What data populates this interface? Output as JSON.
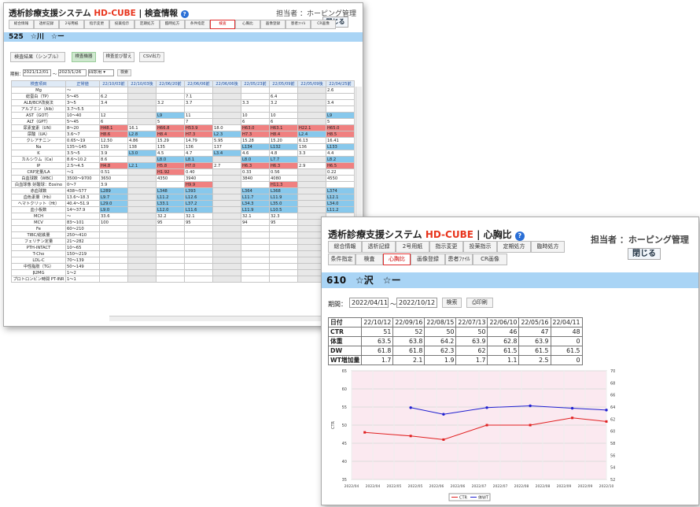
{
  "w1": {
    "title_a": "透析診療支援システム ",
    "title_b": "HD-CUBE",
    "title_c": " | 検査情報",
    "help": "?",
    "resp": "担当者 ：ホーピング管理",
    "close": "閉じる",
    "tabs": [
      "総合情報",
      "透析記録",
      "2号用紙",
      "指示変更",
      "投薬指示",
      "定期処方",
      "臨時処方",
      "条件指定",
      "検査",
      "心胸比",
      "画像登録",
      "患者ﾌｧｲﾙ",
      "CR画像"
    ],
    "active_tab": "検査",
    "patient": "525　☆川　☆ー",
    "btn_simple": "検査結果（シンプル）",
    "btn_list": "検査機器",
    "btn_sort": "検査並び替え",
    "btn_csv": "CSV出力",
    "period_label": "期間：",
    "from": "2021/12/01",
    "to": "2023/1/26",
    "select": "四診用",
    "search": "検索",
    "head_item": "検査項目",
    "head_range": "正常値",
    "dates": [
      "22/10/03前",
      "22/10/03後",
      "22/06/20前",
      "22/06/06前",
      "22/06/06後",
      "22/05/23前",
      "22/05/09前",
      "22/05/09後",
      "22/04/25前"
    ],
    "rows": [
      {
        "n": "Mg",
        "r": "〜",
        "v": [
          "",
          "",
          "",
          "",
          "",
          "",
          "",
          "",
          "2.6"
        ]
      },
      {
        "n": "総蛋白（TP）",
        "r": "5〜45",
        "v": [
          "6.2",
          "",
          "",
          "7.1",
          "",
          "",
          "6.4",
          "",
          ""
        ]
      },
      {
        "n": "ALB/BCP改良法",
        "r": "3〜5",
        "v": [
          "3.4",
          "",
          "3.2",
          "3.7",
          "",
          "3.3",
          "3.2",
          "",
          "3.4"
        ]
      },
      {
        "n": "アルブミン（Alb）",
        "r": "3.7〜5.5",
        "v": [
          "",
          "",
          "",
          "",
          "",
          "",
          "",
          "",
          ""
        ]
      },
      {
        "n": "AST（GOT）",
        "r": "10〜40",
        "v": [
          "12",
          "",
          "L9",
          "11",
          "",
          "10",
          "10",
          "",
          "L9"
        ]
      },
      {
        "n": "ALT（GPT）",
        "r": "5〜45",
        "v": [
          "6",
          "",
          "5",
          "7",
          "",
          "6",
          "6",
          "",
          "5"
        ]
      },
      {
        "n": "尿素窒素（UN）",
        "r": "8〜20",
        "v": [
          "H48.1",
          "16.1",
          "H66.8",
          "H53.9",
          "18.0",
          "H63.0",
          "H63.1",
          "H22.1",
          "H65.0"
        ]
      },
      {
        "n": "尿酸（UA）",
        "r": "3.6〜7",
        "v": [
          "H8.6",
          "L2.8",
          "H8.4",
          "H7.3",
          "L2.3",
          "H7.3",
          "H8.4",
          "L2.4",
          "H8.5"
        ]
      },
      {
        "n": "クレアチニン",
        "r": "0.65〜19",
        "v": [
          "12.50",
          "4.86",
          "15.29",
          "14.79",
          "5.95",
          "15.28",
          "15.20",
          "6.13",
          "16.41"
        ]
      },
      {
        "n": "Na",
        "r": "135〜145",
        "v": [
          "139",
          "138",
          "135",
          "136",
          "137",
          "L134",
          "L132",
          "136",
          "L133"
        ]
      },
      {
        "n": "K",
        "r": "3.5〜5",
        "v": [
          "3.9",
          "L3.0",
          "4.5",
          "4.7",
          "L3.4",
          "4.6",
          "4.8",
          "3.3",
          "4.4"
        ]
      },
      {
        "n": "カルシウム（Ca）",
        "r": "8.6〜10.2",
        "v": [
          "8.6",
          "",
          "L8.0",
          "L8.1",
          "",
          "L8.0",
          "L7.7",
          "",
          "L8.2"
        ]
      },
      {
        "n": "IP",
        "r": "2.5〜4.5",
        "v": [
          "H4.8",
          "L2.1",
          "H5.8",
          "H7.0",
          "2.7",
          "H6.3",
          "H6.3",
          "2.9",
          "H6.5"
        ]
      },
      {
        "n": "CRP定量/LA",
        "r": "〜1",
        "v": [
          "0.51",
          "",
          "H1.92",
          "0.40",
          "",
          "0.33",
          "0.56",
          "",
          "0.22"
        ]
      },
      {
        "n": "白血球数（WBC）",
        "r": "3500〜9700",
        "v": [
          "3650",
          "",
          "4350",
          "3940",
          "",
          "3840",
          "4080",
          "",
          "4550"
        ]
      },
      {
        "n": "白血球像 好酸球：Eosino",
        "r": "0〜7",
        "v": [
          "3.9",
          "",
          "",
          "H9.9",
          "",
          "",
          "H11.3",
          "",
          ""
        ]
      },
      {
        "n": "赤血球数",
        "r": "438〜577",
        "v": [
          "L289",
          "",
          "L348",
          "L393",
          "",
          "L364",
          "L368",
          "",
          "L374"
        ]
      },
      {
        "n": "血色素量（Hb）",
        "r": "13.6〜18.3",
        "v": [
          "L9.7",
          "",
          "L11.2",
          "L12.6",
          "",
          "L11.7",
          "L11.9",
          "",
          "L12.1"
        ]
      },
      {
        "n": "ヘマトクリット（Ht）",
        "r": "40.4〜51.9",
        "v": [
          "L29.0",
          "",
          "L33.1",
          "L37.2",
          "",
          "L34.3",
          "L35.0",
          "",
          "L34.0"
        ]
      },
      {
        "n": "血小板数",
        "r": "14〜37.9",
        "v": [
          "L9.0",
          "",
          "L12.0",
          "L11.6",
          "",
          "L11.9",
          "L10.5",
          "",
          "L11.2"
        ]
      },
      {
        "n": "MCH",
        "r": "〜",
        "v": [
          "33.6",
          "",
          "32.2",
          "32.1",
          "",
          "32.1",
          "32.3",
          "",
          ""
        ]
      },
      {
        "n": "MCV",
        "r": "83〜101",
        "v": [
          "100",
          "",
          "95",
          "95",
          "",
          "94",
          "95",
          "",
          ""
        ]
      },
      {
        "n": "Fe",
        "r": "60〜210",
        "v": [
          "",
          "",
          "",
          "",
          "",
          "",
          "",
          "",
          ""
        ]
      },
      {
        "n": "TIBC/総鉄量",
        "r": "250〜410",
        "v": [
          "",
          "",
          "",
          "",
          "",
          "",
          "",
          "",
          ""
        ]
      },
      {
        "n": "フェリチン定量",
        "r": "21〜282",
        "v": [
          "",
          "",
          "",
          "",
          "",
          "",
          "",
          "",
          ""
        ]
      },
      {
        "n": "PTH-INTACT",
        "r": "10〜65",
        "v": [
          "",
          "",
          "",
          "",
          "",
          "",
          "",
          "",
          ""
        ]
      },
      {
        "n": "T-Cho",
        "r": "150〜219",
        "v": [
          "",
          "",
          "",
          "",
          "",
          "",
          "",
          "",
          ""
        ]
      },
      {
        "n": "LDL-C",
        "r": "70〜139",
        "v": [
          "",
          "",
          "",
          "",
          "",
          "",
          "",
          "",
          ""
        ]
      },
      {
        "n": "中性脂肪（TG）",
        "r": "50〜149",
        "v": [
          "",
          "",
          "",
          "",
          "",
          "",
          "",
          "",
          ""
        ]
      },
      {
        "n": "β2MG",
        "r": "1〜2",
        "v": [
          "",
          "",
          "",
          "",
          "",
          "",
          "",
          "",
          ""
        ]
      },
      {
        "n": "プロトロンビン時間 PT-INR",
        "r": "1〜1",
        "v": [
          "",
          "",
          "",
          "",
          "",
          "",
          "",
          "",
          ""
        ]
      }
    ]
  },
  "w2": {
    "title_a": "透析診療支援システム ",
    "title_b": "HD-CUBE",
    "title_c": " | 心胸比",
    "help": "?",
    "resp": "担当者 ：ホーピング管理",
    "close": "閉じる",
    "tabs_row1": [
      "総合情報",
      "透析記録",
      "2号用紙",
      "指示変更",
      "投薬指示",
      "定期処方",
      "臨時処方"
    ],
    "tabs_row2": [
      "条件指定",
      "検査",
      "心胸比",
      "画像登録",
      "患者ﾌｧｲﾙ",
      "CR画像"
    ],
    "active_tab": "心胸比",
    "patient": "610　☆沢　☆ー",
    "period_label": "期間：",
    "from": "2022/04/11",
    "to": "2022/10/12",
    "search": "検索",
    "print": "印刷",
    "table": {
      "dates": [
        "22/10/12",
        "22/09/16",
        "22/08/15",
        "22/07/13",
        "22/06/10",
        "22/05/16",
        "22/04/11"
      ],
      "rows": [
        {
          "h": "日付",
          "v": []
        },
        {
          "h": "CTR",
          "v": [
            "51",
            "52",
            "50",
            "50",
            "46",
            "47",
            "48"
          ]
        },
        {
          "h": "体重",
          "v": [
            "63.5",
            "63.8",
            "64.2",
            "63.9",
            "62.8",
            "63.9",
            "0"
          ]
        },
        {
          "h": "DW",
          "v": [
            "61.8",
            "61.8",
            "62.3",
            "62",
            "61.5",
            "61.5",
            "61.5"
          ]
        },
        {
          "h": "WT増加量",
          "v": [
            "1.7",
            "2.1",
            "1.9",
            "1.7",
            "1.1",
            "2.5",
            "0"
          ]
        }
      ]
    }
  },
  "chart_data": {
    "type": "line",
    "x": [
      "2022/04",
      "2022/04",
      "2022/05",
      "2022/05",
      "2022/06",
      "2022/06",
      "2022/07",
      "2022/07",
      "2022/08",
      "2022/08",
      "2022/09",
      "2022/09",
      "2022/10"
    ],
    "ylabel": "CTR",
    "ylim": [
      35,
      65
    ],
    "y2lim": [
      52,
      70
    ],
    "series": [
      {
        "name": "CTR",
        "axis": "left",
        "color": "#e02020",
        "points": [
          [
            "2022/04/11",
            48
          ],
          [
            "2022/05/16",
            47
          ],
          [
            "2022/06/10",
            46
          ],
          [
            "2022/07/13",
            50
          ],
          [
            "2022/08/15",
            50
          ],
          [
            "2022/09/16",
            52
          ],
          [
            "2022/10/12",
            51
          ]
        ]
      },
      {
        "name": "体WT",
        "axis": "right",
        "color": "#2020d0",
        "points": [
          [
            "2022/05/16",
            63.9
          ],
          [
            "2022/06/10",
            62.8
          ],
          [
            "2022/07/13",
            63.9
          ],
          [
            "2022/08/15",
            64.2
          ],
          [
            "2022/09/16",
            63.8
          ],
          [
            "2022/10/12",
            63.5
          ]
        ]
      }
    ],
    "yticks": [
      35,
      40,
      45,
      50,
      55,
      60,
      65
    ],
    "y2ticks": [
      52,
      54,
      56,
      58,
      60,
      62,
      64,
      66,
      68,
      70
    ],
    "grid": true,
    "legend": "bottom",
    "bg": "#fbe9f0"
  }
}
